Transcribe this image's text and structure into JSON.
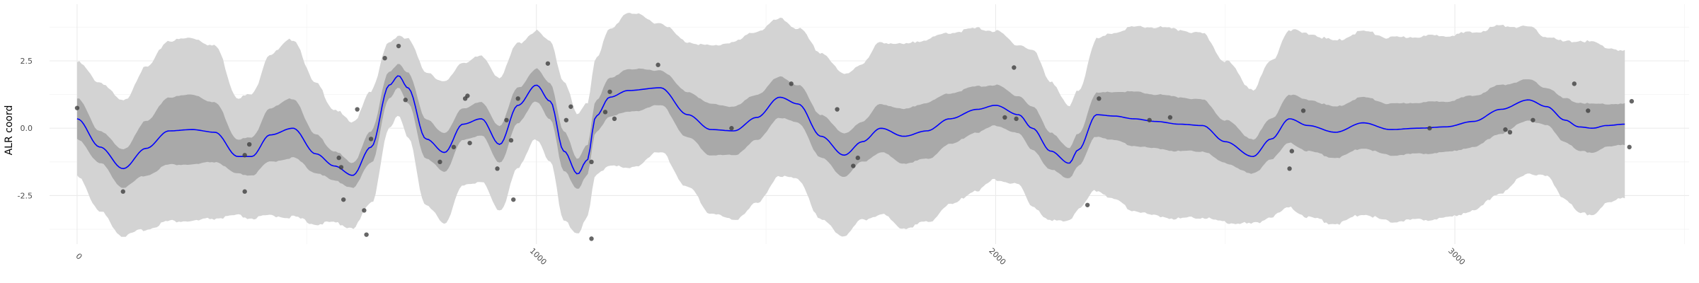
{
  "chart_data": {
    "type": "line",
    "title": "",
    "xlabel": "",
    "ylabel": "ALR coord",
    "xlim": [
      -60,
      3510
    ],
    "ylim": [
      -4.3,
      4.6
    ],
    "x_ticks": [
      0,
      1000,
      2000,
      3000
    ],
    "y_ticks": [
      -2.5,
      0.0,
      2.5
    ],
    "y_tick_labels": [
      "-2.5",
      "0.0",
      "2.5"
    ],
    "x_tick_labels": [
      "0",
      "1000",
      "2000",
      "3000"
    ],
    "grid": true,
    "legend": "none",
    "colors": {
      "line": "#0000ff",
      "inner_band": "#a9a9a9",
      "outer_band": "#d3d3d3",
      "points": "#404040",
      "grid_major": "#ebebeb",
      "grid_minor": "#f4f4f4"
    },
    "mean_curve": {
      "x": [
        0,
        50,
        100,
        150,
        200,
        250,
        300,
        350,
        380,
        420,
        470,
        520,
        560,
        600,
        640,
        680,
        700,
        720,
        760,
        800,
        840,
        880,
        920,
        960,
        1000,
        1030,
        1060,
        1090,
        1110,
        1130,
        1160,
        1200,
        1270,
        1330,
        1380,
        1430,
        1480,
        1530,
        1570,
        1620,
        1670,
        1710,
        1750,
        1800,
        1850,
        1900,
        1960,
        2000,
        2050,
        2080,
        2120,
        2160,
        2180,
        2220,
        2260,
        2300,
        2350,
        2400,
        2450,
        2500,
        2560,
        2600,
        2640,
        2680,
        2740,
        2800,
        2860,
        2920,
        2980,
        3040,
        3100,
        3160,
        3200,
        3240,
        3270,
        3300,
        3330,
        3370
      ],
      "y": [
        0.35,
        -0.7,
        -1.5,
        -0.75,
        -0.1,
        -0.05,
        -0.15,
        -1.05,
        -1.05,
        -0.25,
        0.0,
        -0.95,
        -1.4,
        -1.75,
        -0.7,
        1.6,
        1.95,
        1.5,
        -0.4,
        -0.9,
        0.15,
        0.35,
        -0.6,
        0.85,
        1.6,
        1.0,
        -0.85,
        -1.7,
        -1.2,
        0.45,
        1.15,
        1.4,
        1.5,
        0.5,
        -0.05,
        -0.1,
        0.4,
        1.15,
        0.9,
        -0.3,
        -1.0,
        -0.5,
        0.0,
        -0.3,
        -0.1,
        0.35,
        0.7,
        0.85,
        0.5,
        0.0,
        -0.85,
        -1.3,
        -0.8,
        0.5,
        0.45,
        0.35,
        0.25,
        0.15,
        0.1,
        -0.5,
        -1.05,
        -0.4,
        0.35,
        0.1,
        -0.15,
        0.2,
        -0.05,
        0.0,
        0.05,
        0.25,
        0.7,
        1.05,
        0.8,
        0.3,
        0.05,
        0.0,
        0.1,
        0.15
      ]
    },
    "inner_band_halfwidth": {
      "x": [
        0,
        50,
        100,
        150,
        200,
        250,
        300,
        350,
        380,
        420,
        470,
        520,
        560,
        600,
        640,
        680,
        700,
        720,
        760,
        800,
        840,
        880,
        920,
        960,
        1000,
        1030,
        1060,
        1090,
        1110,
        1130,
        1160,
        1200,
        1270,
        1330,
        1380,
        1430,
        1480,
        1530,
        1570,
        1620,
        1670,
        1710,
        1750,
        1800,
        1850,
        1900,
        1960,
        2000,
        2050,
        2080,
        2120,
        2160,
        2180,
        2220,
        2260,
        2300,
        2350,
        2400,
        2450,
        2500,
        2560,
        2600,
        2640,
        2680,
        2740,
        2800,
        2860,
        2920,
        2980,
        3040,
        3100,
        3160,
        3200,
        3240,
        3270,
        3300,
        3330,
        3370
      ],
      "y": [
        0.75,
        0.6,
        0.7,
        1.0,
        1.25,
        1.3,
        1.1,
        0.65,
        0.7,
        1.0,
        1.1,
        0.7,
        0.55,
        0.45,
        0.6,
        0.5,
        0.45,
        0.55,
        0.75,
        0.7,
        0.6,
        0.6,
        0.7,
        0.65,
        0.6,
        0.65,
        0.75,
        0.55,
        0.55,
        0.6,
        0.7,
        0.8,
        0.65,
        0.85,
        0.95,
        0.9,
        0.85,
        0.75,
        0.7,
        0.8,
        0.8,
        0.75,
        0.9,
        1.0,
        1.05,
        0.95,
        0.85,
        0.75,
        0.7,
        0.8,
        0.7,
        0.55,
        0.6,
        0.8,
        0.9,
        1.0,
        1.0,
        1.0,
        0.95,
        0.8,
        0.65,
        0.75,
        0.9,
        0.95,
        0.95,
        0.95,
        0.95,
        0.95,
        0.95,
        0.95,
        0.9,
        0.75,
        0.7,
        0.8,
        0.9,
        0.9,
        0.8,
        0.75
      ]
    },
    "outer_band_halfwidth": {
      "x": [
        0,
        50,
        100,
        150,
        200,
        250,
        300,
        350,
        380,
        420,
        470,
        520,
        560,
        600,
        640,
        680,
        700,
        720,
        760,
        800,
        840,
        880,
        920,
        960,
        1000,
        1030,
        1060,
        1090,
        1110,
        1130,
        1160,
        1200,
        1270,
        1330,
        1380,
        1430,
        1480,
        1530,
        1570,
        1620,
        1670,
        1710,
        1750,
        1800,
        1850,
        1900,
        1960,
        2000,
        2050,
        2080,
        2120,
        2160,
        2180,
        2220,
        2260,
        2300,
        2350,
        2400,
        2450,
        2500,
        2560,
        2600,
        2640,
        2680,
        2740,
        2800,
        2860,
        2920,
        2980,
        3040,
        3100,
        3160,
        3200,
        3240,
        3270,
        3300,
        3330,
        3370
      ],
      "y": [
        2.1,
        2.4,
        2.5,
        3.0,
        3.35,
        3.4,
        3.2,
        2.2,
        2.3,
        3.0,
        3.3,
        2.6,
        2.1,
        1.95,
        2.1,
        1.6,
        1.5,
        1.8,
        2.5,
        2.6,
        2.3,
        2.3,
        2.5,
        2.3,
        2.0,
        2.2,
        2.6,
        2.2,
        2.1,
        2.2,
        2.5,
        2.9,
        2.4,
        2.7,
        3.1,
        3.3,
        3.2,
        2.9,
        2.8,
        3.1,
        3.0,
        2.9,
        3.2,
        3.4,
        3.4,
        3.2,
        3.0,
        2.75,
        2.6,
        2.9,
        2.6,
        2.1,
        2.2,
        2.8,
        3.1,
        3.4,
        3.5,
        3.5,
        3.4,
        3.0,
        2.5,
        2.9,
        3.3,
        3.4,
        3.4,
        3.4,
        3.4,
        3.4,
        3.4,
        3.3,
        3.1,
        2.7,
        2.6,
        2.9,
        3.2,
        3.2,
        2.9,
        2.7
      ]
    },
    "points": [
      {
        "x": 0,
        "y": 0.75
      },
      {
        "x": 100,
        "y": -2.35
      },
      {
        "x": 365,
        "y": -1.0
      },
      {
        "x": 375,
        "y": -0.6
      },
      {
        "x": 365,
        "y": -2.35
      },
      {
        "x": 570,
        "y": -1.1
      },
      {
        "x": 575,
        "y": -1.45
      },
      {
        "x": 580,
        "y": -2.65
      },
      {
        "x": 610,
        "y": 0.7
      },
      {
        "x": 625,
        "y": -3.05
      },
      {
        "x": 630,
        "y": -3.95
      },
      {
        "x": 640,
        "y": -0.4
      },
      {
        "x": 670,
        "y": 2.6
      },
      {
        "x": 700,
        "y": 3.05
      },
      {
        "x": 715,
        "y": 1.05
      },
      {
        "x": 790,
        "y": -1.25
      },
      {
        "x": 820,
        "y": -0.7
      },
      {
        "x": 845,
        "y": 1.1
      },
      {
        "x": 850,
        "y": 1.2
      },
      {
        "x": 855,
        "y": -0.55
      },
      {
        "x": 915,
        "y": -1.5
      },
      {
        "x": 935,
        "y": 0.3
      },
      {
        "x": 945,
        "y": -0.45
      },
      {
        "x": 950,
        "y": -2.65
      },
      {
        "x": 960,
        "y": 1.1
      },
      {
        "x": 1025,
        "y": 2.4
      },
      {
        "x": 1065,
        "y": 0.3
      },
      {
        "x": 1075,
        "y": 0.8
      },
      {
        "x": 1120,
        "y": -1.25
      },
      {
        "x": 1120,
        "y": -4.1
      },
      {
        "x": 1150,
        "y": 0.6
      },
      {
        "x": 1160,
        "y": 1.35
      },
      {
        "x": 1170,
        "y": 0.35
      },
      {
        "x": 1265,
        "y": 2.35
      },
      {
        "x": 1425,
        "y": 0.0
      },
      {
        "x": 1555,
        "y": 1.65
      },
      {
        "x": 1655,
        "y": 0.7
      },
      {
        "x": 1690,
        "y": -1.4
      },
      {
        "x": 1700,
        "y": -1.1
      },
      {
        "x": 2020,
        "y": 0.4
      },
      {
        "x": 2040,
        "y": 2.25
      },
      {
        "x": 2045,
        "y": 0.35
      },
      {
        "x": 2200,
        "y": -2.85
      },
      {
        "x": 2225,
        "y": 1.1
      },
      {
        "x": 2335,
        "y": 0.3
      },
      {
        "x": 2380,
        "y": 0.4
      },
      {
        "x": 2640,
        "y": -1.5
      },
      {
        "x": 2645,
        "y": -0.85
      },
      {
        "x": 2670,
        "y": 0.65
      },
      {
        "x": 2945,
        "y": 0.0
      },
      {
        "x": 3110,
        "y": -0.05
      },
      {
        "x": 3120,
        "y": -0.15
      },
      {
        "x": 3170,
        "y": 0.3
      },
      {
        "x": 3260,
        "y": 1.65
      },
      {
        "x": 3290,
        "y": 0.65
      },
      {
        "x": 3380,
        "y": -0.7
      },
      {
        "x": 3385,
        "y": 1.0
      }
    ]
  }
}
